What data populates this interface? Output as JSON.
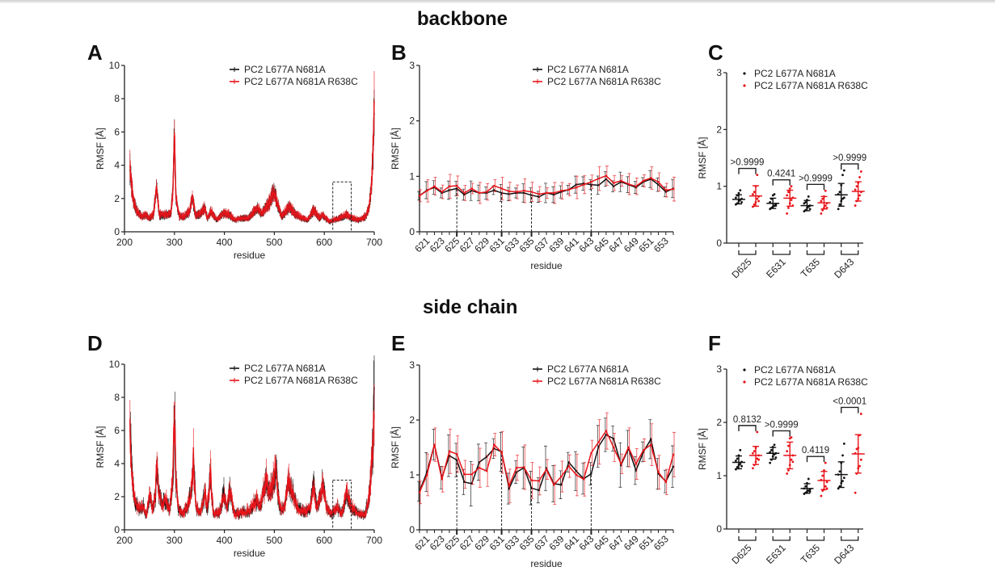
{
  "titles": {
    "backbone": "backbone",
    "side_chain": "side chain"
  },
  "panel_letters": [
    "A",
    "B",
    "C",
    "D",
    "E",
    "F"
  ],
  "colors": {
    "series1": "#111111",
    "series2": "#e8141a"
  },
  "chart_data": [
    {
      "panel": "A",
      "type": "line",
      "section": "backbone",
      "xlabel": "residue",
      "ylabel": "RMSF [Å]",
      "xlim": [
        200,
        700
      ],
      "ylim": [
        0,
        10
      ],
      "xticks": [
        200,
        300,
        400,
        500,
        600,
        700
      ],
      "yticks": [
        0,
        2,
        4,
        6,
        8,
        10
      ],
      "legend": [
        "PC2 L677A N681A",
        "PC2 L677A N681A R638C"
      ],
      "legend_position": "top-right",
      "highlight_box": {
        "x": [
          617,
          654
        ],
        "y": [
          0,
          3
        ]
      },
      "profile_peaks": [
        {
          "x": 211,
          "y": 4.0
        },
        {
          "x": 214,
          "y": 2.8
        },
        {
          "x": 218,
          "y": 1.8
        },
        {
          "x": 225,
          "y": 1.2
        },
        {
          "x": 235,
          "y": 0.9
        },
        {
          "x": 242,
          "y": 1.0
        },
        {
          "x": 250,
          "y": 0.8
        },
        {
          "x": 258,
          "y": 1.0
        },
        {
          "x": 264,
          "y": 2.7
        },
        {
          "x": 270,
          "y": 1.0
        },
        {
          "x": 285,
          "y": 1.0
        },
        {
          "x": 293,
          "y": 1.1
        },
        {
          "x": 297,
          "y": 2.5
        },
        {
          "x": 300,
          "y": 5.9
        },
        {
          "x": 303,
          "y": 2.0
        },
        {
          "x": 310,
          "y": 0.9
        },
        {
          "x": 320,
          "y": 0.9
        },
        {
          "x": 330,
          "y": 1.2
        },
        {
          "x": 336,
          "y": 2.1
        },
        {
          "x": 342,
          "y": 1.0
        },
        {
          "x": 350,
          "y": 1.0
        },
        {
          "x": 361,
          "y": 1.4
        },
        {
          "x": 366,
          "y": 0.8
        },
        {
          "x": 373,
          "y": 1.2
        },
        {
          "x": 385,
          "y": 0.7
        },
        {
          "x": 398,
          "y": 1.1
        },
        {
          "x": 410,
          "y": 1.0
        },
        {
          "x": 420,
          "y": 0.7
        },
        {
          "x": 433,
          "y": 0.8
        },
        {
          "x": 448,
          "y": 0.8
        },
        {
          "x": 466,
          "y": 1.4
        },
        {
          "x": 475,
          "y": 1.1
        },
        {
          "x": 490,
          "y": 1.7
        },
        {
          "x": 499,
          "y": 2.4
        },
        {
          "x": 507,
          "y": 1.6
        },
        {
          "x": 515,
          "y": 0.9
        },
        {
          "x": 530,
          "y": 1.5
        },
        {
          "x": 540,
          "y": 1.1
        },
        {
          "x": 555,
          "y": 0.8
        },
        {
          "x": 567,
          "y": 0.7
        },
        {
          "x": 579,
          "y": 1.3
        },
        {
          "x": 590,
          "y": 0.8
        },
        {
          "x": 596,
          "y": 1.0
        },
        {
          "x": 610,
          "y": 0.6
        },
        {
          "x": 620,
          "y": 0.7
        },
        {
          "x": 630,
          "y": 0.8
        },
        {
          "x": 645,
          "y": 1.0
        },
        {
          "x": 655,
          "y": 0.8
        },
        {
          "x": 670,
          "y": 0.7
        },
        {
          "x": 683,
          "y": 0.9
        },
        {
          "x": 690,
          "y": 1.5
        },
        {
          "x": 695,
          "y": 3.0
        },
        {
          "x": 698,
          "y": 5.2
        },
        {
          "x": 700,
          "y": 7.5
        }
      ]
    },
    {
      "panel": "B",
      "type": "line",
      "section": "backbone",
      "xlabel": "residue",
      "ylabel": "RMSF [Å]",
      "xlim": [
        620,
        654
      ],
      "ylim": [
        0,
        3
      ],
      "xtick_labels": [
        621,
        623,
        625,
        627,
        629,
        631,
        633,
        635,
        637,
        639,
        641,
        643,
        645,
        647,
        649,
        651,
        653
      ],
      "yticks": [
        0,
        1,
        2,
        3
      ],
      "marked_residues": [
        625,
        631,
        635,
        643
      ],
      "legend_position": "top-right",
      "x": [
        620,
        621,
        622,
        623,
        624,
        625,
        626,
        627,
        628,
        629,
        630,
        631,
        632,
        633,
        634,
        635,
        636,
        637,
        638,
        639,
        640,
        641,
        642,
        643,
        644,
        645,
        646,
        647,
        648,
        649,
        650,
        651,
        652,
        653,
        654
      ],
      "series": [
        {
          "name": "PC2 L677A N681A",
          "values": [
            0.65,
            0.75,
            0.8,
            0.7,
            0.75,
            0.78,
            0.67,
            0.74,
            0.7,
            0.7,
            0.75,
            0.7,
            0.68,
            0.7,
            0.7,
            0.66,
            0.63,
            0.7,
            0.67,
            0.72,
            0.76,
            0.85,
            0.87,
            0.85,
            0.84,
            0.95,
            0.82,
            0.9,
            0.85,
            0.8,
            0.9,
            0.95,
            0.85,
            0.72,
            0.78
          ],
          "error": 0.13
        },
        {
          "name": "PC2 L677A N681A R638C",
          "values": [
            0.65,
            0.74,
            0.82,
            0.72,
            0.82,
            0.83,
            0.7,
            0.78,
            0.7,
            0.72,
            0.83,
            0.78,
            0.73,
            0.72,
            0.74,
            0.72,
            0.68,
            0.7,
            0.7,
            0.74,
            0.76,
            0.8,
            0.85,
            0.9,
            0.96,
            1.01,
            0.88,
            0.92,
            0.86,
            0.82,
            0.92,
            0.97,
            0.9,
            0.75,
            0.77
          ],
          "error": 0.16
        }
      ]
    },
    {
      "panel": "C",
      "type": "scatter",
      "section": "backbone",
      "ylabel": "RMSF [Å]",
      "ylim": [
        0,
        3
      ],
      "yticks": [
        0,
        1,
        2,
        3
      ],
      "categories": [
        "D625",
        "E631",
        "T635",
        "D643"
      ],
      "legend_position": "top",
      "series": [
        {
          "name": "PC2 L677A N681A",
          "means": [
            0.77,
            0.7,
            0.66,
            0.85
          ],
          "sd": [
            0.08,
            0.09,
            0.09,
            0.2
          ],
          "points": [
            [
              0.68,
              0.7,
              0.74,
              0.76,
              0.78,
              0.8,
              0.84,
              0.88,
              0.93,
              0.72
            ],
            [
              0.6,
              0.62,
              0.64,
              0.66,
              0.68,
              0.72,
              0.78,
              0.84,
              0.86,
              0.66
            ],
            [
              0.56,
              0.58,
              0.62,
              0.64,
              0.66,
              0.7,
              0.72,
              0.76,
              0.82,
              0.6
            ],
            [
              0.6,
              0.68,
              0.74,
              0.78,
              0.8,
              0.86,
              0.9,
              1.02,
              1.2,
              1.28
            ]
          ]
        },
        {
          "name": "PC2 L677A N681A R638C",
          "means": [
            0.83,
            0.79,
            0.71,
            0.91
          ],
          "sd": [
            0.18,
            0.14,
            0.11,
            0.17
          ],
          "points": [
            [
              0.64,
              0.68,
              0.72,
              0.78,
              0.82,
              0.86,
              0.9,
              1.0,
              1.2,
              0.74
            ],
            [
              0.52,
              0.62,
              0.7,
              0.76,
              0.8,
              0.84,
              0.9,
              0.96,
              1.0,
              0.66
            ],
            [
              0.52,
              0.58,
              0.62,
              0.66,
              0.7,
              0.74,
              0.78,
              0.82,
              0.92,
              0.62
            ],
            [
              0.66,
              0.74,
              0.78,
              0.84,
              0.9,
              0.94,
              1.0,
              1.06,
              1.16,
              1.26
            ]
          ]
        }
      ],
      "p_values": [
        ">0.9999",
        "0.4241",
        ">0.9999",
        ">0.9999"
      ]
    },
    {
      "panel": "D",
      "type": "line",
      "section": "side chain",
      "xlabel": "residue",
      "ylabel": "RMSF [Å]",
      "xlim": [
        200,
        700
      ],
      "ylim": [
        0,
        10
      ],
      "xticks": [
        200,
        300,
        400,
        500,
        600,
        700
      ],
      "yticks": [
        0,
        2,
        4,
        6,
        8,
        10
      ],
      "legend": [
        "PC2 L677A N681A",
        "PC2 L677A N681A R638C"
      ],
      "legend_position": "top-right",
      "highlight_box": {
        "x": [
          617,
          654
        ],
        "y": [
          0,
          3
        ]
      },
      "profile_peaks": [
        {
          "x": 211,
          "y": 6.1
        },
        {
          "x": 213,
          "y": 4.5
        },
        {
          "x": 217,
          "y": 2.6
        },
        {
          "x": 222,
          "y": 1.6
        },
        {
          "x": 230,
          "y": 1.2
        },
        {
          "x": 238,
          "y": 1.4
        },
        {
          "x": 244,
          "y": 0.8
        },
        {
          "x": 251,
          "y": 2.2
        },
        {
          "x": 256,
          "y": 1.2
        },
        {
          "x": 262,
          "y": 2.0
        },
        {
          "x": 265,
          "y": 4.1
        },
        {
          "x": 268,
          "y": 2.4
        },
        {
          "x": 275,
          "y": 1.5
        },
        {
          "x": 283,
          "y": 1.8
        },
        {
          "x": 290,
          "y": 1.1
        },
        {
          "x": 297,
          "y": 3.0
        },
        {
          "x": 300,
          "y": 7.5
        },
        {
          "x": 303,
          "y": 3.0
        },
        {
          "x": 308,
          "y": 1.2
        },
        {
          "x": 318,
          "y": 1.0
        },
        {
          "x": 328,
          "y": 1.5
        },
        {
          "x": 336,
          "y": 3.0
        },
        {
          "x": 338,
          "y": 4.3
        },
        {
          "x": 343,
          "y": 1.4
        },
        {
          "x": 352,
          "y": 1.0
        },
        {
          "x": 361,
          "y": 2.3
        },
        {
          "x": 366,
          "y": 1.2
        },
        {
          "x": 372,
          "y": 3.4
        },
        {
          "x": 378,
          "y": 0.9
        },
        {
          "x": 390,
          "y": 1.0
        },
        {
          "x": 399,
          "y": 2.2
        },
        {
          "x": 405,
          "y": 1.2
        },
        {
          "x": 411,
          "y": 2.4
        },
        {
          "x": 420,
          "y": 0.9
        },
        {
          "x": 435,
          "y": 1.0
        },
        {
          "x": 450,
          "y": 1.1
        },
        {
          "x": 465,
          "y": 1.8
        },
        {
          "x": 472,
          "y": 1.3
        },
        {
          "x": 484,
          "y": 3.1
        },
        {
          "x": 490,
          "y": 2.2
        },
        {
          "x": 500,
          "y": 3.2
        },
        {
          "x": 503,
          "y": 3.8
        },
        {
          "x": 510,
          "y": 1.4
        },
        {
          "x": 520,
          "y": 1.2
        },
        {
          "x": 528,
          "y": 2.9
        },
        {
          "x": 535,
          "y": 2.3
        },
        {
          "x": 545,
          "y": 1.4
        },
        {
          "x": 560,
          "y": 1.0
        },
        {
          "x": 570,
          "y": 1.2
        },
        {
          "x": 579,
          "y": 2.7
        },
        {
          "x": 585,
          "y": 1.2
        },
        {
          "x": 597,
          "y": 2.7
        },
        {
          "x": 605,
          "y": 1.3
        },
        {
          "x": 615,
          "y": 0.9
        },
        {
          "x": 625,
          "y": 1.3
        },
        {
          "x": 635,
          "y": 1.0
        },
        {
          "x": 645,
          "y": 2.2
        },
        {
          "x": 655,
          "y": 1.3
        },
        {
          "x": 665,
          "y": 1.0
        },
        {
          "x": 680,
          "y": 0.9
        },
        {
          "x": 688,
          "y": 1.5
        },
        {
          "x": 693,
          "y": 3.2
        },
        {
          "x": 697,
          "y": 5.0
        },
        {
          "x": 700,
          "y": 8.0
        }
      ]
    },
    {
      "panel": "E",
      "type": "line",
      "section": "side chain",
      "xlabel": "residue",
      "ylabel": "RMSF [Å]",
      "xlim": [
        620,
        654
      ],
      "ylim": [
        0,
        3
      ],
      "xtick_labels": [
        621,
        623,
        625,
        627,
        629,
        631,
        633,
        635,
        637,
        639,
        641,
        643,
        645,
        647,
        649,
        651,
        653
      ],
      "yticks": [
        0,
        1,
        2,
        3
      ],
      "marked_residues": [
        625,
        631,
        635,
        643
      ],
      "legend_position": "top-right",
      "x": [
        620,
        621,
        622,
        623,
        624,
        625,
        626,
        627,
        628,
        629,
        630,
        631,
        632,
        633,
        634,
        635,
        636,
        637,
        638,
        639,
        640,
        641,
        642,
        643,
        644,
        645,
        646,
        647,
        648,
        649,
        650,
        651,
        652,
        653,
        654
      ],
      "series": [
        {
          "name": "PC2 L677A N681A",
          "values": [
            0.7,
            1.05,
            1.55,
            0.95,
            1.35,
            1.27,
            0.87,
            0.84,
            1.23,
            1.33,
            1.48,
            1.42,
            0.75,
            1.05,
            1.13,
            0.76,
            0.72,
            1.12,
            0.84,
            0.82,
            1.23,
            1.07,
            0.93,
            1.02,
            1.52,
            1.73,
            1.66,
            1.18,
            1.48,
            1.08,
            1.42,
            1.65,
            1.02,
            0.88,
            1.15
          ],
          "error": 0.3
        },
        {
          "name": "PC2 L677A N681A R638C",
          "values": [
            0.68,
            1.0,
            1.55,
            0.92,
            1.43,
            1.38,
            1.01,
            1.01,
            1.13,
            1.07,
            1.55,
            1.41,
            0.8,
            1.13,
            1.14,
            0.9,
            0.89,
            1.1,
            0.82,
            0.97,
            1.16,
            1.0,
            0.92,
            1.4,
            1.6,
            1.8,
            1.5,
            1.2,
            1.5,
            1.2,
            1.45,
            1.55,
            1.05,
            0.87,
            1.37
          ],
          "error": 0.3
        }
      ]
    },
    {
      "panel": "F",
      "type": "scatter",
      "section": "side chain",
      "ylabel": "RMSF [Å]",
      "ylim": [
        0,
        3
      ],
      "yticks": [
        0,
        1,
        2,
        3
      ],
      "categories": [
        "D625",
        "E631",
        "T635",
        "D643"
      ],
      "legend_position": "top",
      "series": [
        {
          "name": "PC2 L677A N681A",
          "means": [
            1.25,
            1.42,
            0.76,
            1.02
          ],
          "sd": [
            0.12,
            0.11,
            0.09,
            0.24
          ],
          "points": [
            [
              1.12,
              1.16,
              1.2,
              1.22,
              1.26,
              1.28,
              1.32,
              1.38,
              1.48,
              1.18
            ],
            [
              1.24,
              1.3,
              1.36,
              1.4,
              1.42,
              1.44,
              1.48,
              1.54,
              1.58,
              1.34
            ],
            [
              0.66,
              0.68,
              0.7,
              0.72,
              0.74,
              0.76,
              0.8,
              0.86,
              0.94,
              0.7
            ],
            [
              0.76,
              0.8,
              0.86,
              0.9,
              0.96,
              1.02,
              1.08,
              1.24,
              1.38,
              1.6
            ]
          ]
        },
        {
          "name": "PC2 L677A N681A R638C",
          "means": [
            1.38,
            1.38,
            0.91,
            1.41
          ],
          "sd": [
            0.17,
            0.25,
            0.17,
            0.36
          ],
          "points": [
            [
              1.14,
              1.2,
              1.26,
              1.32,
              1.38,
              1.42,
              1.46,
              1.52,
              1.82,
              1.3
            ],
            [
              1.04,
              1.1,
              1.2,
              1.3,
              1.38,
              1.46,
              1.56,
              1.7,
              1.72,
              1.26
            ],
            [
              0.62,
              0.72,
              0.74,
              0.8,
              0.88,
              0.92,
              1.0,
              1.1,
              1.24,
              0.76
            ],
            [
              0.68,
              1.04,
              1.14,
              1.18,
              1.3,
              1.42,
              1.5,
              1.52,
              1.76,
              2.16
            ]
          ]
        }
      ],
      "p_values": [
        "0.8132",
        ">0.9999",
        "0.4119",
        "<0.0001"
      ]
    }
  ]
}
